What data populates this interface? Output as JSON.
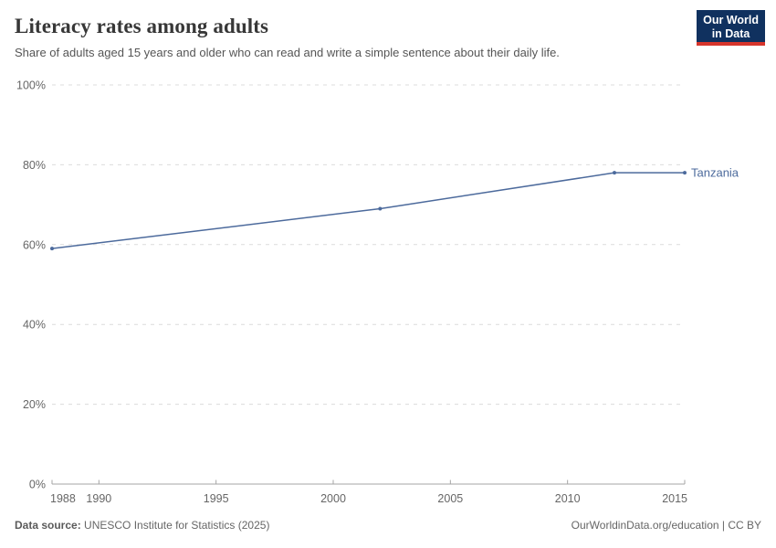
{
  "header": {
    "title": "Literacy rates among adults",
    "subtitle": "Share of adults aged 15 years and older who can read and write a simple sentence about their daily life."
  },
  "logo": {
    "line1": "Our World",
    "line2": "in Data"
  },
  "chart_data": {
    "type": "line",
    "title": "Literacy rates among adults",
    "xlabel": "",
    "ylabel": "",
    "xlim": [
      1988,
      2015
    ],
    "ylim": [
      0,
      100
    ],
    "grid": "horizontal-dashed",
    "legend": "inline-end-label",
    "x_ticks": [
      1988,
      1990,
      1995,
      2000,
      2005,
      2010,
      2015
    ],
    "x_tick_labels": [
      "1988",
      "1990",
      "1995",
      "2000",
      "2005",
      "2010",
      "2015"
    ],
    "y_ticks": [
      0,
      20,
      40,
      60,
      80,
      100
    ],
    "y_tick_labels": [
      "0%",
      "20%",
      "40%",
      "60%",
      "80%",
      "100%"
    ],
    "series": [
      {
        "name": "Tanzania",
        "x": [
          1988,
          2002,
          2012,
          2015
        ],
        "values": [
          59,
          69,
          78,
          78
        ],
        "color": "#4C6A9C"
      }
    ]
  },
  "footer": {
    "source_label": "Data source:",
    "source_text": "UNESCO Institute for Statistics (2025)",
    "link_text": "OurWorldinData.org/education | CC BY"
  },
  "colors": {
    "line": "#4C6A9C",
    "grid": "#dcdcdc",
    "axis": "#a5a5a5",
    "tick_label": "#666666",
    "title": "#373737",
    "subtitle": "#555555",
    "footer": "#666666",
    "logo_bg": "#10315f",
    "logo_red": "#d7352c"
  }
}
